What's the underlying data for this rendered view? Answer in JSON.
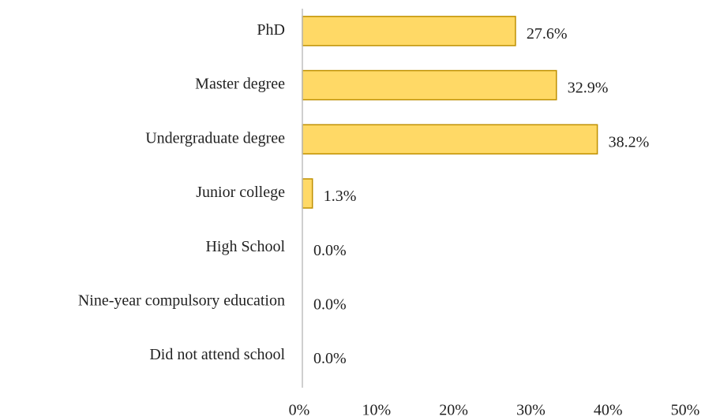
{
  "chart_data": {
    "type": "barh",
    "categories": [
      "PhD",
      "Master degree",
      "Undergraduate degree",
      "Junior college",
      "High School",
      "Nine-year compulsory education",
      "Did not attend school"
    ],
    "values": [
      27.6,
      32.9,
      38.2,
      1.3,
      0.0,
      0.0,
      0.0
    ],
    "value_labels": [
      "27.6%",
      "32.9%",
      "38.2%",
      "1.3%",
      "0.0%",
      "0.0%",
      "0.0%"
    ],
    "color": "#ffd966",
    "edge_color": "#bf9000",
    "xlim": [
      0,
      50
    ],
    "xticks": [
      {
        "value": 0,
        "label": "0%"
      },
      {
        "value": 10,
        "label": "10%"
      },
      {
        "value": 20,
        "label": "20%"
      },
      {
        "value": 30,
        "label": "30%"
      },
      {
        "value": 40,
        "label": "40%"
      },
      {
        "value": 50,
        "label": "50%"
      }
    ],
    "grid": false
  }
}
